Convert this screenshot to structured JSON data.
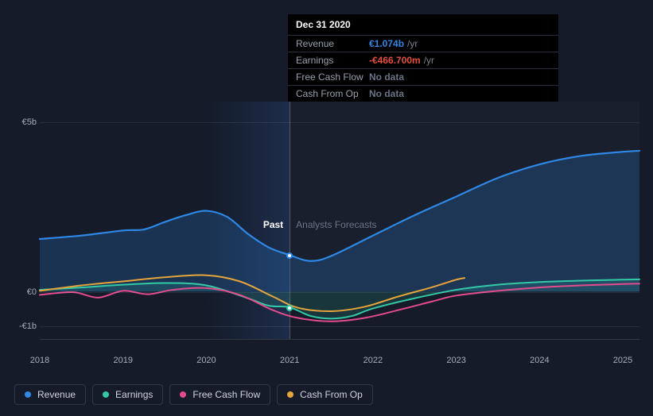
{
  "chart": {
    "type": "line",
    "background_color": "#151b29",
    "section_labels": {
      "past": "Past",
      "forecast": "Analysts Forecasts"
    },
    "section_label_colors": {
      "past": "#ffffff",
      "forecast": "#6b7385"
    },
    "highlight_band": {
      "x_start": 2020,
      "x_end": 2021,
      "fill": "rgba(50,90,160,0.28)"
    },
    "hover_x": 2021,
    "xlim": [
      2018,
      2025.2
    ],
    "x_ticks": [
      2018,
      2019,
      2020,
      2021,
      2022,
      2023,
      2024,
      2025
    ],
    "ylim": [
      -1.4,
      5.6
    ],
    "y_ticks": [
      {
        "v": 5,
        "label": "€5b"
      },
      {
        "v": 0,
        "label": "€0"
      },
      {
        "v": -1,
        "label": "-€1b"
      }
    ],
    "grid_color": "rgba(255,255,255,0.08)",
    "series": [
      {
        "id": "revenue",
        "label": "Revenue",
        "color": "#2f87e6",
        "width": 2.2,
        "area_to": 0,
        "area_opacity": 0.22,
        "data": [
          [
            2018,
            1.55
          ],
          [
            2018.5,
            1.65
          ],
          [
            2019,
            1.8
          ],
          [
            2019.25,
            1.83
          ],
          [
            2019.5,
            2.05
          ],
          [
            2019.75,
            2.25
          ],
          [
            2020,
            2.38
          ],
          [
            2020.25,
            2.2
          ],
          [
            2020.5,
            1.7
          ],
          [
            2020.75,
            1.3
          ],
          [
            2021,
            1.074
          ],
          [
            2021.25,
            0.9
          ],
          [
            2021.5,
            1.05
          ],
          [
            2022,
            1.65
          ],
          [
            2022.5,
            2.25
          ],
          [
            2023,
            2.8
          ],
          [
            2023.5,
            3.35
          ],
          [
            2024,
            3.75
          ],
          [
            2024.5,
            4.0
          ],
          [
            2025,
            4.12
          ],
          [
            2025.2,
            4.15
          ]
        ]
      },
      {
        "id": "earnings",
        "label": "Earnings",
        "color": "#33c9a7",
        "width": 2,
        "area_to": 0,
        "area_opacity": 0.16,
        "data": [
          [
            2018,
            0.05
          ],
          [
            2018.5,
            0.12
          ],
          [
            2019,
            0.2
          ],
          [
            2019.5,
            0.25
          ],
          [
            2020,
            0.18
          ],
          [
            2020.5,
            -0.2
          ],
          [
            2020.75,
            -0.42
          ],
          [
            2021,
            -0.467
          ],
          [
            2021.25,
            -0.72
          ],
          [
            2021.5,
            -0.8
          ],
          [
            2021.75,
            -0.72
          ],
          [
            2022,
            -0.5
          ],
          [
            2022.5,
            -0.2
          ],
          [
            2023,
            0.05
          ],
          [
            2023.5,
            0.2
          ],
          [
            2024,
            0.28
          ],
          [
            2024.5,
            0.32
          ],
          [
            2025,
            0.35
          ],
          [
            2025.2,
            0.36
          ]
        ]
      },
      {
        "id": "fcf",
        "label": "Free Cash Flow",
        "color": "#e34b8c",
        "width": 2,
        "data": [
          [
            2018,
            -0.1
          ],
          [
            2018.4,
            -0.02
          ],
          [
            2018.7,
            -0.18
          ],
          [
            2019,
            0.02
          ],
          [
            2019.3,
            -0.08
          ],
          [
            2019.6,
            0.05
          ],
          [
            2020,
            0.1
          ],
          [
            2020.4,
            -0.1
          ],
          [
            2020.8,
            -0.55
          ],
          [
            2021.1,
            -0.78
          ],
          [
            2021.5,
            -0.88
          ],
          [
            2021.9,
            -0.78
          ],
          [
            2022.3,
            -0.55
          ],
          [
            2022.7,
            -0.3
          ],
          [
            2023,
            -0.12
          ],
          [
            2023.5,
            0.02
          ],
          [
            2024,
            0.12
          ],
          [
            2024.5,
            0.18
          ],
          [
            2025,
            0.22
          ],
          [
            2025.2,
            0.23
          ]
        ]
      },
      {
        "id": "cfo",
        "label": "Cash From Op",
        "color": "#e6a43c",
        "width": 2,
        "data": [
          [
            2018,
            0.02
          ],
          [
            2018.5,
            0.18
          ],
          [
            2019,
            0.3
          ],
          [
            2019.5,
            0.42
          ],
          [
            2020,
            0.48
          ],
          [
            2020.4,
            0.3
          ],
          [
            2020.8,
            -0.15
          ],
          [
            2021.1,
            -0.48
          ],
          [
            2021.5,
            -0.58
          ],
          [
            2021.9,
            -0.45
          ],
          [
            2022.3,
            -0.15
          ],
          [
            2022.7,
            0.12
          ],
          [
            2023,
            0.35
          ],
          [
            2023.1,
            0.4
          ]
        ]
      }
    ],
    "markers": [
      {
        "x": 2021,
        "y": 1.074,
        "border": "#2f87e6"
      },
      {
        "x": 2021,
        "y": -0.467,
        "border": "#33c9a7"
      }
    ]
  },
  "tooltip": {
    "date": "Dec 31 2020",
    "rows": [
      {
        "key": "Revenue",
        "val": "€1.074b",
        "unit": "/yr",
        "color": "#2f87e6"
      },
      {
        "key": "Earnings",
        "val": "-€466.700m",
        "unit": "/yr",
        "color": "#e74c3c"
      },
      {
        "key": "Free Cash Flow",
        "val": "No data",
        "unit": "",
        "color": "#6b7385"
      },
      {
        "key": "Cash From Op",
        "val": "No data",
        "unit": "",
        "color": "#6b7385"
      }
    ]
  },
  "legend": [
    {
      "id": "revenue",
      "label": "Revenue",
      "color": "#2f87e6"
    },
    {
      "id": "earnings",
      "label": "Earnings",
      "color": "#33c9a7"
    },
    {
      "id": "fcf",
      "label": "Free Cash Flow",
      "color": "#e34b8c"
    },
    {
      "id": "cfo",
      "label": "Cash From Op",
      "color": "#e6a43c"
    }
  ]
}
